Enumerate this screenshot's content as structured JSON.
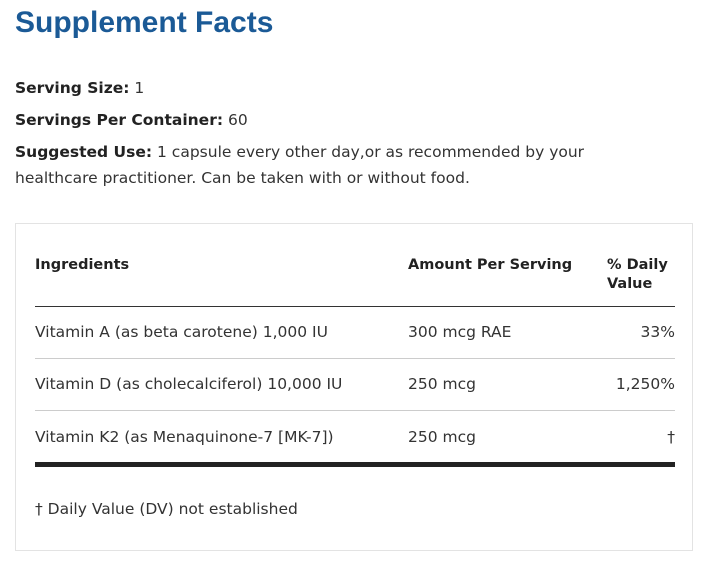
{
  "title": "Supplement Facts",
  "serving_size": {
    "label": "Serving Size:",
    "value": "1"
  },
  "servings_per_container": {
    "label": "Servings Per Container:",
    "value": "60"
  },
  "suggested_use": {
    "label": "Suggested Use:",
    "value": "1 capsule every other day,or as recommended by your healthcare practitioner. Can be taken with or without food."
  },
  "table": {
    "headers": {
      "ingredients": "Ingredients",
      "amount": "Amount Per Serving",
      "daily_value": "% Daily Value"
    },
    "rows": [
      {
        "ingredient": "Vitamin A (as beta carotene) 1,000 IU",
        "amount": "300 mcg RAE",
        "daily_value": "33%"
      },
      {
        "ingredient": "Vitamin D (as cholecalciferol) 10,000 IU",
        "amount": "250 mcg",
        "daily_value": "1,250%"
      },
      {
        "ingredient": "Vitamin K2 (as Menaquinone-7 [MK-7])",
        "amount": "250 mcg",
        "daily_value": "†"
      }
    ]
  },
  "footnote": "† Daily Value (DV) not established",
  "colors": {
    "title": "#1b5a96"
  }
}
